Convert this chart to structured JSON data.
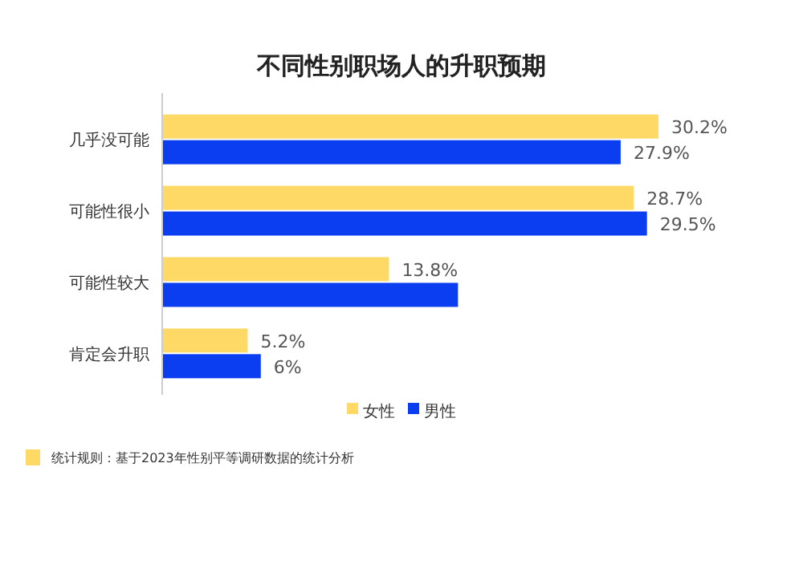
{
  "chart_data": {
    "type": "bar",
    "orientation": "horizontal",
    "title": "不同性别职场人的升职预期",
    "categories": [
      "几乎没可能",
      "可能性很小",
      "可能性较大",
      "肯定会升职"
    ],
    "series": [
      {
        "name": "女性",
        "color": "#ffd966",
        "values": [
          30.2,
          28.7,
          13.8,
          5.2
        ],
        "value_labels": [
          "30.2%",
          "28.7%",
          "13.8%",
          "5.2%"
        ]
      },
      {
        "name": "男性",
        "color": "#0a3ef0",
        "values": [
          27.9,
          29.5,
          18,
          6
        ],
        "value_labels": [
          "27.9%",
          "29.5%",
          null,
          "6%"
        ]
      }
    ],
    "legend": "bottom",
    "tick_labels": "y",
    "annotations": [
      "统计规则：基于2023年性别平等调研数据的统计分析"
    ]
  }
}
